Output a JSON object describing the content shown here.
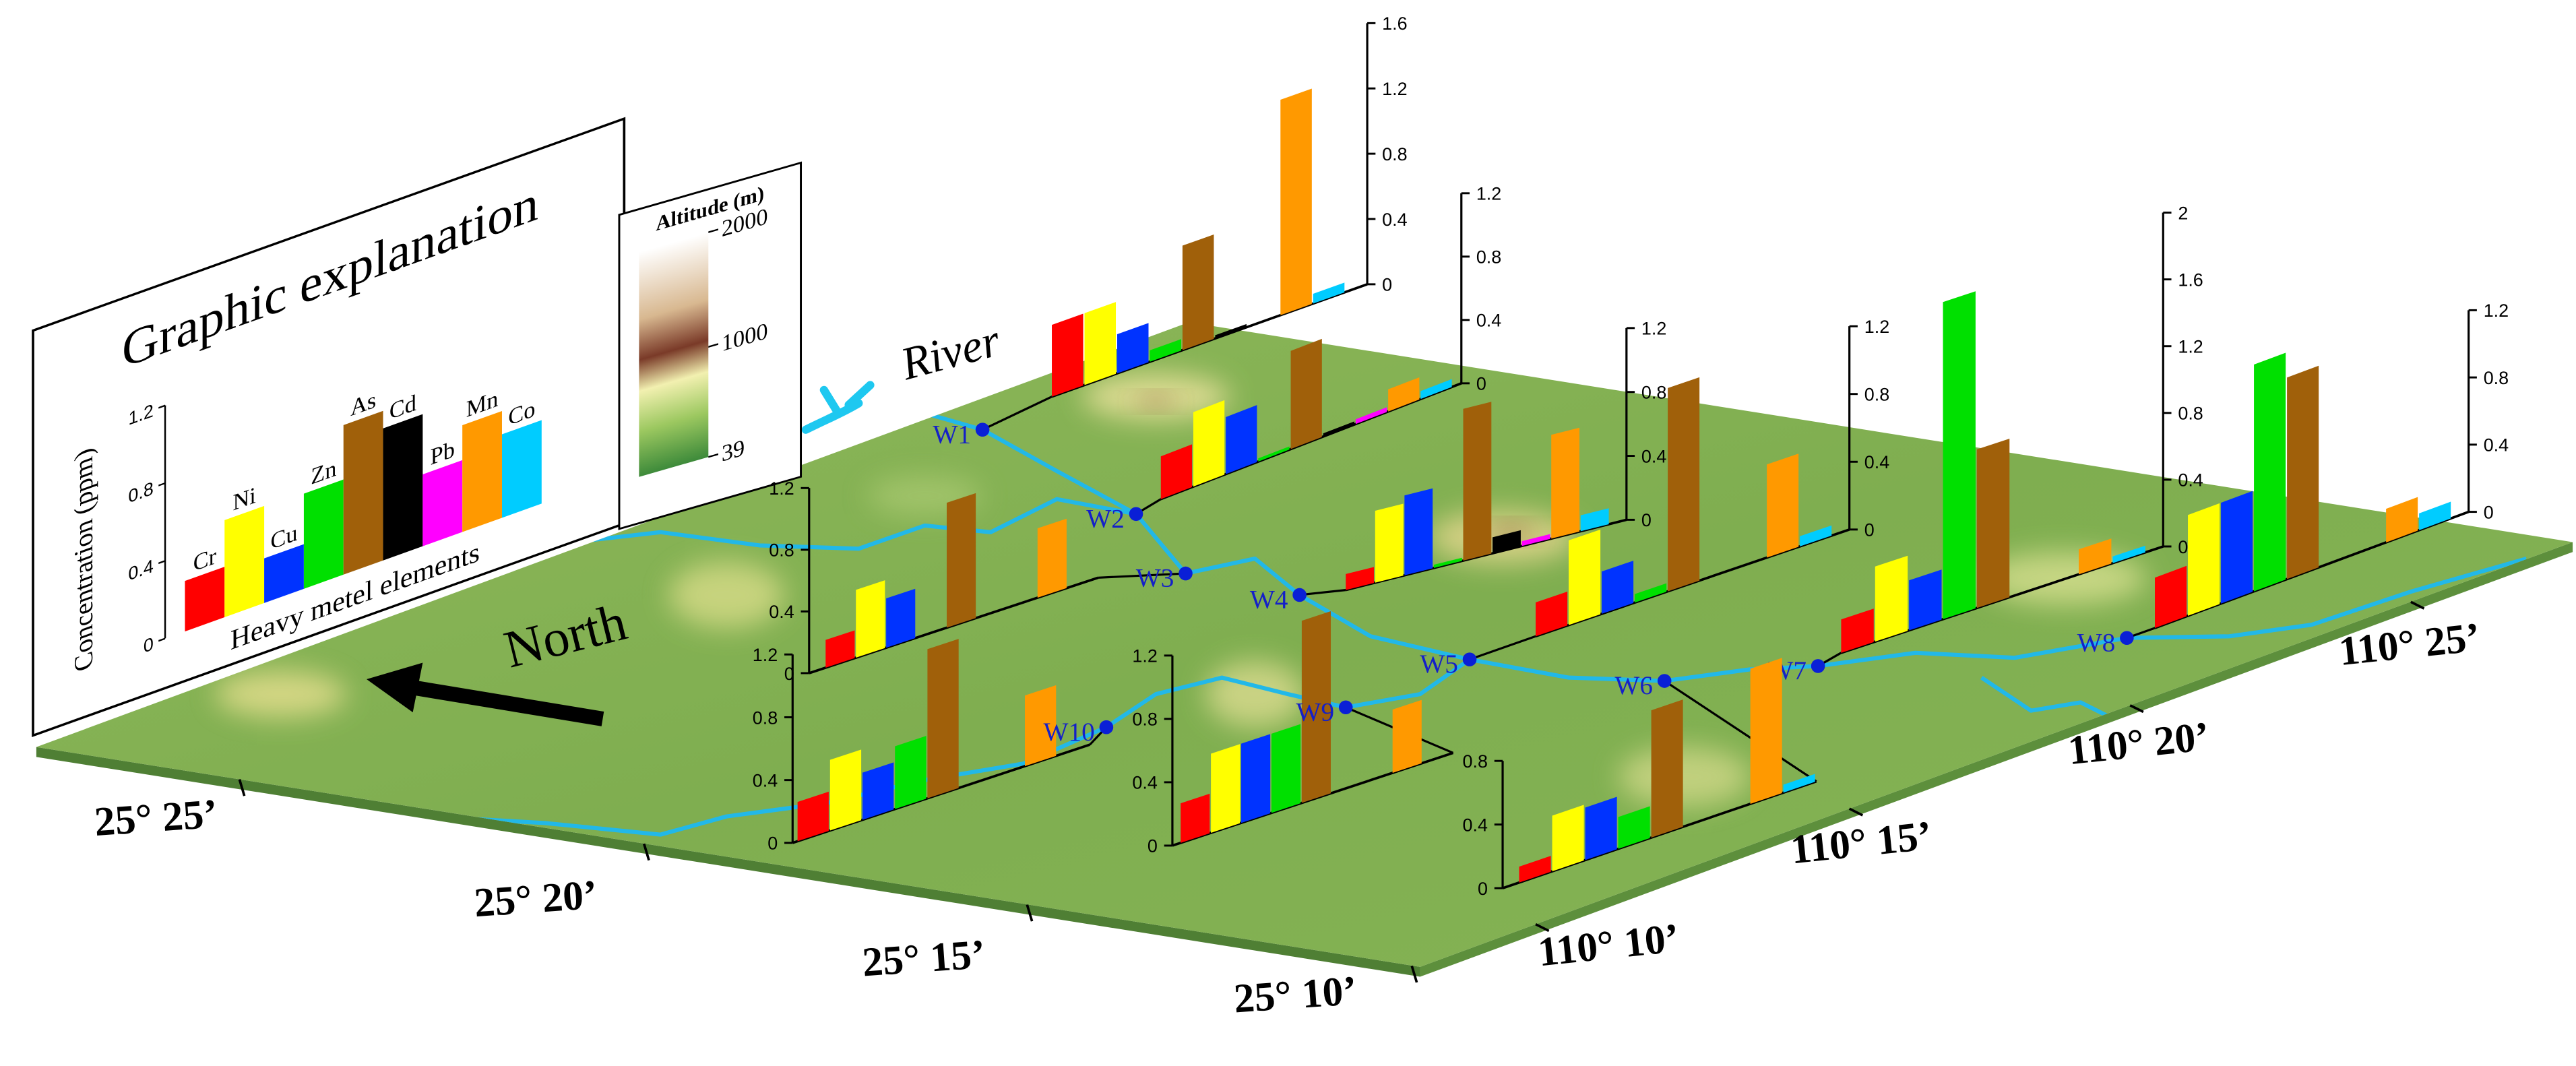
{
  "legend": {
    "title": "Graphic explanation",
    "ylabel": "Concentration (ppm)",
    "xlabel": "Heavy metel elements",
    "elements": [
      "Cr",
      "Ni",
      "Cu",
      "Zn",
      "As",
      "Cd",
      "Pb",
      "Mn",
      "Co"
    ],
    "colors": [
      "#ff0000",
      "#ffff00",
      "#0033ff",
      "#00e000",
      "#a0600a",
      "#000000",
      "#ff00ff",
      "#ff9900",
      "#00ccff"
    ],
    "values": [
      0.26,
      0.5,
      0.23,
      0.49,
      0.77,
      0.68,
      0.37,
      0.55,
      0.43
    ],
    "ylim": [
      0,
      1.2
    ],
    "yticks": [
      0,
      0.4,
      0.8,
      1.2
    ]
  },
  "colorbar": {
    "title": "Altitude (m)",
    "lim": [
      39,
      2000
    ],
    "ticks": [
      2000,
      1000,
      39
    ]
  },
  "river_label": "River",
  "north_label": "North",
  "latitude_labels": [
    "25° 25’",
    "25° 20’",
    "25° 15’",
    "25° 10’"
  ],
  "longitude_labels": [
    "110° 10’",
    "110° 15’",
    "110° 20’",
    "110° 25’"
  ],
  "chart_data": [
    {
      "type": "bar",
      "title": "W1",
      "values": [
        0.44,
        0.44,
        0.24,
        0.07,
        0.64,
        0.02,
        0,
        1.32,
        0.06
      ],
      "ylim": [
        0,
        1.6
      ],
      "yticks": [
        0,
        0.4,
        0.8,
        1.2,
        1.6
      ]
    },
    {
      "type": "bar",
      "title": "W2",
      "values": [
        0.27,
        0.47,
        0.36,
        0.02,
        0.62,
        0.02,
        0.03,
        0.14,
        0.05
      ],
      "ylim": [
        0,
        1.2
      ],
      "yticks": [
        0,
        0.4,
        0.8,
        1.2
      ]
    },
    {
      "type": "bar",
      "title": "W3",
      "values": [
        0.18,
        0.44,
        0.32,
        0,
        0.81,
        0,
        0,
        0.45,
        0
      ],
      "ylim": [
        0,
        1.2
      ],
      "yticks": [
        0,
        0.4,
        0.8,
        1.2
      ]
    },
    {
      "type": "bar",
      "title": "W4",
      "values": [
        0.1,
        0.45,
        0.5,
        0.02,
        0.95,
        0.1,
        0.03,
        0.65,
        0.1
      ],
      "ylim": [
        0,
        1.2
      ],
      "yticks": [
        0,
        0.4,
        0.8,
        1.2
      ]
    },
    {
      "type": "bar",
      "title": "W5",
      "values": [
        0.2,
        0.5,
        0.25,
        0.05,
        1.2,
        0,
        0,
        0.55,
        0.06
      ],
      "ylim": [
        0,
        1.2
      ],
      "yticks": [
        0,
        0.4,
        0.8,
        1.2
      ]
    },
    {
      "type": "bar",
      "title": "W6",
      "values": [
        0.1,
        0.35,
        0.33,
        0.2,
        0.8,
        0,
        0,
        0.85,
        0.05
      ],
      "ylim": [
        0,
        0.8
      ],
      "yticks": [
        0,
        0.4,
        0.8
      ]
    },
    {
      "type": "bar",
      "title": "W7",
      "values": [
        0.2,
        0.45,
        0.3,
        1.9,
        0.95,
        0,
        0,
        0.15,
        0.04
      ],
      "ylim": [
        0,
        2
      ],
      "yticks": [
        0,
        0.4,
        0.8,
        1.2,
        1.6,
        2
      ]
    },
    {
      "type": "bar",
      "title": "W8",
      "values": [
        0.3,
        0.6,
        0.6,
        1.35,
        1.2,
        0,
        0,
        0.2,
        0.1
      ],
      "ylim": [
        0,
        1.2
      ],
      "yticks": [
        0,
        0.4,
        0.8,
        1.2
      ]
    },
    {
      "type": "bar",
      "title": "W9",
      "values": [
        0.25,
        0.5,
        0.5,
        0.5,
        1.15,
        0,
        0,
        0.4,
        0
      ],
      "ylim": [
        0,
        1.2
      ],
      "yticks": [
        0,
        0.4,
        0.8,
        1.2
      ]
    },
    {
      "type": "bar",
      "title": "W10",
      "values": [
        0.25,
        0.45,
        0.3,
        0.4,
        0.95,
        0,
        0,
        0.45,
        0
      ],
      "ylim": [
        0,
        1.2
      ],
      "yticks": [
        0,
        0.4,
        0.8,
        1.2
      ]
    }
  ]
}
